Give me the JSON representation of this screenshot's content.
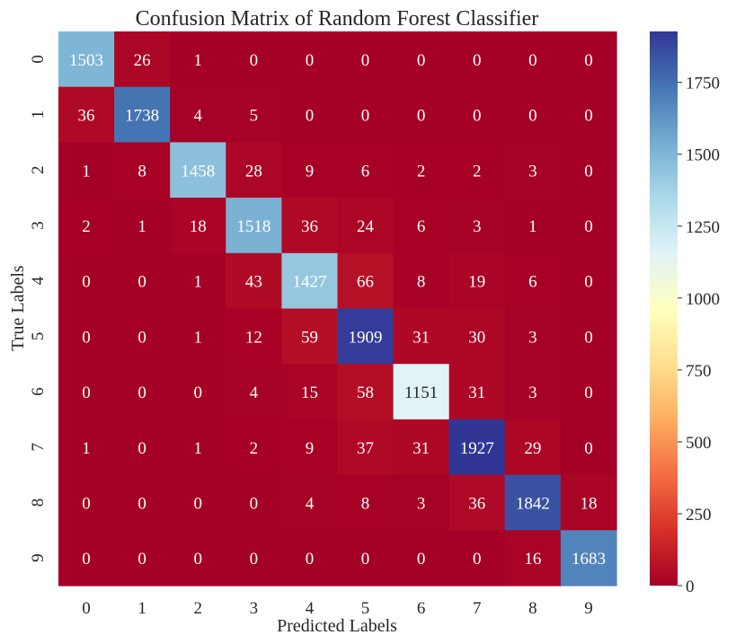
{
  "chart_data": {
    "type": "heatmap",
    "title": "Confusion Matrix of Random Forest Classifier",
    "xlabel": "Predicted Labels",
    "ylabel": "True Labels",
    "x_categories": [
      "0",
      "1",
      "2",
      "3",
      "4",
      "5",
      "6",
      "7",
      "8",
      "9"
    ],
    "y_categories": [
      "0",
      "1",
      "2",
      "3",
      "4",
      "5",
      "6",
      "7",
      "8",
      "9"
    ],
    "matrix": [
      [
        1503,
        26,
        1,
        0,
        0,
        0,
        0,
        0,
        0,
        0
      ],
      [
        36,
        1738,
        4,
        5,
        0,
        0,
        0,
        0,
        0,
        0
      ],
      [
        1,
        8,
        1458,
        28,
        9,
        6,
        2,
        2,
        3,
        0
      ],
      [
        2,
        1,
        18,
        1518,
        36,
        24,
        6,
        3,
        1,
        0
      ],
      [
        0,
        0,
        1,
        43,
        1427,
        66,
        8,
        19,
        6,
        0
      ],
      [
        0,
        0,
        1,
        12,
        59,
        1909,
        31,
        30,
        3,
        0
      ],
      [
        0,
        0,
        0,
        4,
        15,
        58,
        1151,
        31,
        3,
        0
      ],
      [
        1,
        0,
        1,
        2,
        9,
        37,
        31,
        1927,
        29,
        0
      ],
      [
        0,
        0,
        0,
        0,
        4,
        8,
        3,
        36,
        1842,
        18
      ],
      [
        0,
        0,
        0,
        0,
        0,
        0,
        0,
        0,
        16,
        1683
      ]
    ],
    "colormap": "RdYlBu",
    "color_range": [
      0,
      1927
    ],
    "colorbar_ticks": [
      0,
      250,
      500,
      750,
      1000,
      1250,
      1500,
      1750
    ],
    "annotations": true,
    "grid": false,
    "colors": {
      "stops": [
        "#a50026",
        "#d73027",
        "#f46d43",
        "#fdae61",
        "#fee090",
        "#ffffbf",
        "#e0f3f8",
        "#abd9e9",
        "#74add1",
        "#4575b4",
        "#313695"
      ],
      "text_on_dark": "#ffffff",
      "text_on_light": "#262626"
    }
  }
}
